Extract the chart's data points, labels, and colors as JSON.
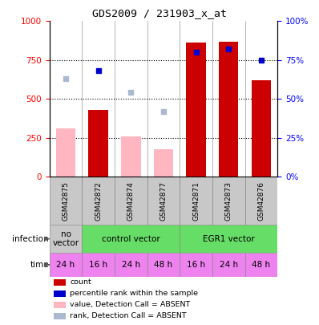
{
  "title": "GDS2009 / 231903_x_at",
  "samples": [
    "GSM42875",
    "GSM42872",
    "GSM42874",
    "GSM42877",
    "GSM42871",
    "GSM42873",
    "GSM42876"
  ],
  "count_values": [
    null,
    430,
    null,
    null,
    860,
    870,
    620
  ],
  "count_absent_values": [
    310,
    null,
    260,
    175,
    null,
    null,
    null
  ],
  "rank_values": [
    null,
    68,
    null,
    null,
    80,
    82,
    75
  ],
  "rank_absent_values": [
    63,
    null,
    54,
    42,
    null,
    null,
    null
  ],
  "time_labels": [
    "24 h",
    "16 h",
    "24 h",
    "48 h",
    "16 h",
    "24 h",
    "48 h"
  ],
  "time_color": "#ee82ee",
  "sample_box_color": "#c8c8c8",
  "bar_color_present": "#cc0000",
  "bar_color_absent": "#ffb6c1",
  "dot_color_present": "#0000cc",
  "dot_color_absent": "#aab8d0",
  "ylim_left": [
    0,
    1000
  ],
  "ylim_right": [
    0,
    100
  ],
  "yticks_left": [
    0,
    250,
    500,
    750,
    1000
  ],
  "yticks_right": [
    0,
    25,
    50,
    75,
    100
  ],
  "grid_lines": [
    250,
    500,
    750
  ],
  "infect_spans": [
    {
      "label": "no\nvector",
      "start": 0,
      "end": 1,
      "color": "#c8c8c8"
    },
    {
      "label": "control vector",
      "start": 1,
      "end": 4,
      "color": "#66dd66"
    },
    {
      "label": "EGR1 vector",
      "start": 4,
      "end": 7,
      "color": "#66dd66"
    }
  ],
  "legend_items": [
    {
      "color": "#cc0000",
      "label": "count"
    },
    {
      "color": "#0000cc",
      "label": "percentile rank within the sample"
    },
    {
      "color": "#ffb6c1",
      "label": "value, Detection Call = ABSENT"
    },
    {
      "color": "#aab8d0",
      "label": "rank, Detection Call = ABSENT"
    }
  ]
}
